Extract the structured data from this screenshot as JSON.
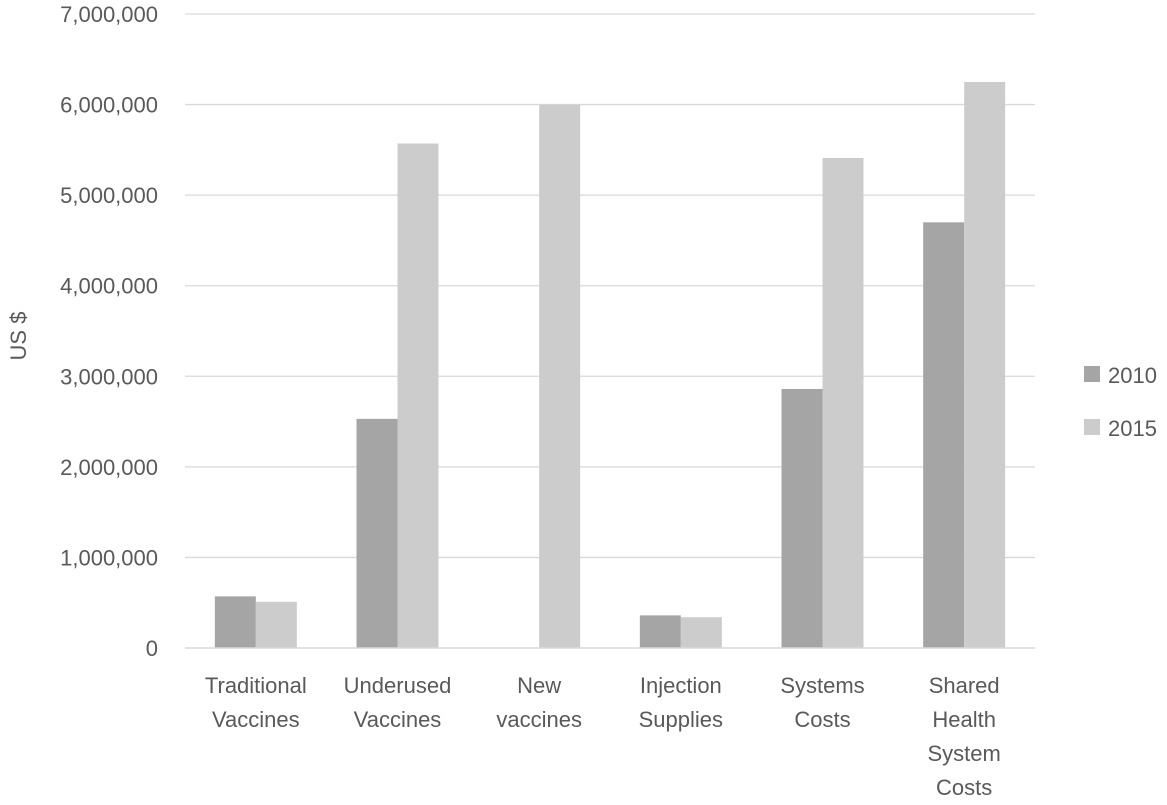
{
  "chart_data": {
    "type": "bar",
    "title": "",
    "xlabel": "",
    "ylabel": "US $",
    "ylim": [
      0,
      7000000
    ],
    "yticks": [
      0,
      1000000,
      2000000,
      3000000,
      4000000,
      5000000,
      6000000,
      7000000
    ],
    "ytick_labels": [
      "0",
      "1,000,000",
      "2,000,000",
      "3,000,000",
      "4,000,000",
      "5,000,000",
      "6,000,000",
      "7,000,000"
    ],
    "grid": true,
    "legend_position": "right",
    "categories": [
      [
        "Traditional",
        "Vaccines"
      ],
      [
        "Underused",
        "Vaccines"
      ],
      [
        "New",
        "vaccines"
      ],
      [
        "Injection",
        "Supplies"
      ],
      [
        "Systems",
        "Costs"
      ],
      [
        "Shared",
        "Health",
        "System",
        "Costs"
      ]
    ],
    "series": [
      {
        "name": "2010",
        "color": "#a5a5a5",
        "values": [
          570000,
          2530000,
          0,
          360000,
          2860000,
          4700000
        ]
      },
      {
        "name": "2015",
        "color": "#cccccc",
        "values": [
          510000,
          5570000,
          6000000,
          340000,
          5410000,
          6250000
        ]
      }
    ],
    "colors": {
      "grid": "#d9d9d9",
      "axis": "#d9d9d9",
      "text": "#595959"
    }
  }
}
